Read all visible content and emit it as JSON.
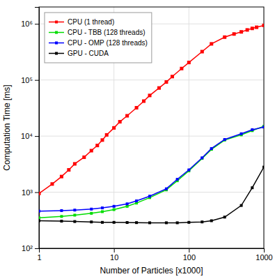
{
  "chart_data": {
    "type": "line",
    "xlabel": "Number of Particles [x1000]",
    "ylabel": "Computation Time [ms]",
    "log": true,
    "grid": true,
    "legend": "upper left",
    "xlim": [
      1,
      1000
    ],
    "ylim": [
      100,
      2000000
    ],
    "xticks": [
      1,
      10,
      100,
      1000
    ],
    "yticks": [
      {
        "value": 100,
        "label": "10²"
      },
      {
        "value": 1000,
        "label": "10³"
      },
      {
        "value": 10000,
        "label": "10⁴"
      },
      {
        "value": 100000,
        "label": "10⁵"
      },
      {
        "value": 1000000,
        "label": "10⁶"
      }
    ],
    "series": [
      {
        "name": "CPU (1 thread)",
        "color": "#ff0000",
        "marker": "square",
        "x": [
          1,
          1.5,
          2,
          2.5,
          3,
          4,
          5,
          6,
          7,
          8,
          10,
          12,
          15,
          20,
          25,
          30,
          40,
          50,
          60,
          80,
          100,
          150,
          200,
          300,
          400,
          500,
          600,
          700,
          800,
          1000
        ],
        "values": [
          950,
          1400,
          1900,
          2500,
          3200,
          4200,
          5500,
          6800,
          8500,
          10500,
          14000,
          18000,
          23000,
          32000,
          42000,
          53000,
          72000,
          92000,
          115000,
          160000,
          205000,
          320000,
          440000,
          580000,
          660000,
          720000,
          780000,
          830000,
          870000,
          940000
        ]
      },
      {
        "name": "CPU - TBB (128 threads)",
        "color": "#00dd00",
        "marker": "square",
        "x": [
          1,
          2,
          3,
          5,
          7,
          10,
          15,
          20,
          30,
          50,
          70,
          100,
          150,
          200,
          300,
          500,
          700,
          1000
        ],
        "values": [
          350,
          370,
          390,
          420,
          450,
          490,
          560,
          640,
          800,
          1100,
          1600,
          2400,
          4000,
          5800,
          8500,
          10500,
          12500,
          15000
        ]
      },
      {
        "name": "CPU - OMP (128 threads)",
        "color": "#0000ff",
        "marker": "square",
        "x": [
          1,
          2,
          3,
          5,
          7,
          10,
          15,
          20,
          30,
          50,
          70,
          100,
          150,
          200,
          300,
          500,
          700,
          1000
        ],
        "values": [
          460,
          470,
          480,
          500,
          525,
          560,
          620,
          700,
          850,
          1150,
          1700,
          2500,
          4100,
          6000,
          8700,
          11000,
          13000,
          14500
        ]
      },
      {
        "name": "GPU - CUDA",
        "color": "#000000",
        "marker": "square",
        "x": [
          1,
          2,
          3,
          5,
          7,
          10,
          15,
          20,
          30,
          50,
          70,
          100,
          150,
          200,
          300,
          500,
          700,
          1000
        ],
        "values": [
          310,
          305,
          300,
          295,
          290,
          290,
          288,
          287,
          285,
          285,
          285,
          290,
          295,
          310,
          360,
          580,
          1200,
          2800
        ]
      }
    ]
  }
}
